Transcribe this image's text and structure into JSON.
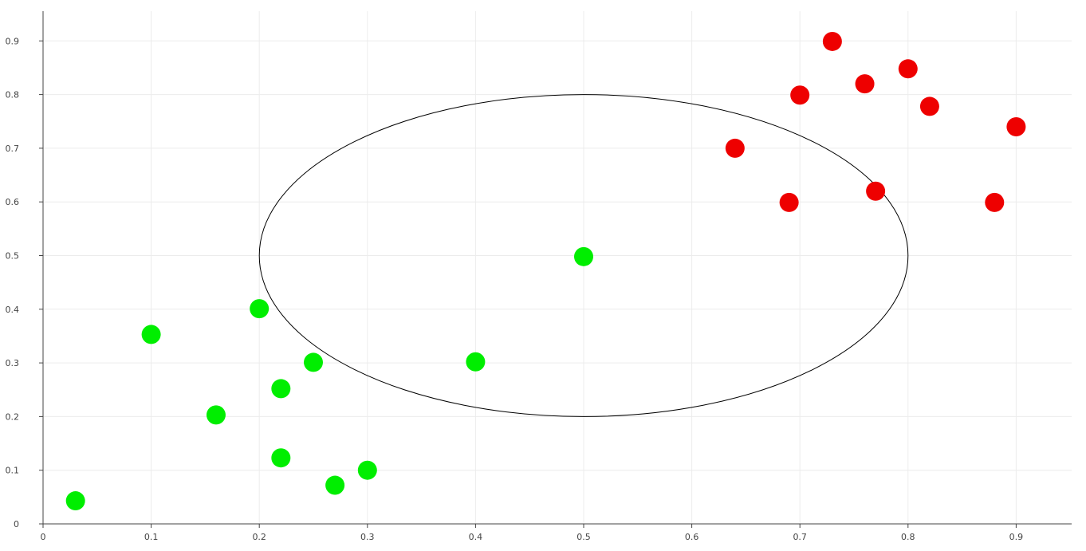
{
  "chart_data": {
    "type": "scatter",
    "title": "",
    "xlabel": "",
    "ylabel": "",
    "xlim": [
      0,
      0.95
    ],
    "ylim": [
      0,
      0.95
    ],
    "grid": true,
    "x_ticks": [
      0,
      0.1,
      0.2,
      0.3,
      0.4,
      0.5,
      0.6,
      0.7,
      0.8,
      0.9
    ],
    "x_tick_labels": [
      "0",
      "0.1",
      "0.2",
      "0.3",
      "0.4",
      "0.5",
      "0.6",
      "0.7",
      "0.8",
      "0.9"
    ],
    "y_ticks": [
      0,
      0.1,
      0.2,
      0.3,
      0.4,
      0.5,
      0.6,
      0.7,
      0.8,
      0.9
    ],
    "y_tick_labels": [
      "0",
      "0.1",
      "0.2",
      "0.3",
      "0.4",
      "0.5",
      "0.6",
      "0.7",
      "0.8",
      "0.9"
    ],
    "series": [
      {
        "color": "#00ee00",
        "points": [
          {
            "x": 0.03,
            "y": 0.043
          },
          {
            "x": 0.1,
            "y": 0.353
          },
          {
            "x": 0.16,
            "y": 0.203
          },
          {
            "x": 0.2,
            "y": 0.401
          },
          {
            "x": 0.22,
            "y": 0.252
          },
          {
            "x": 0.22,
            "y": 0.123
          },
          {
            "x": 0.25,
            "y": 0.301
          },
          {
            "x": 0.27,
            "y": 0.072
          },
          {
            "x": 0.3,
            "y": 0.1
          },
          {
            "x": 0.4,
            "y": 0.302
          },
          {
            "x": 0.5,
            "y": 0.498
          }
        ]
      },
      {
        "color": "#ee0000",
        "points": [
          {
            "x": 0.64,
            "y": 0.7
          },
          {
            "x": 0.69,
            "y": 0.599
          },
          {
            "x": 0.7,
            "y": 0.799
          },
          {
            "x": 0.73,
            "y": 0.899
          },
          {
            "x": 0.76,
            "y": 0.82
          },
          {
            "x": 0.77,
            "y": 0.62
          },
          {
            "x": 0.8,
            "y": 0.848
          },
          {
            "x": 0.82,
            "y": 0.778
          },
          {
            "x": 0.88,
            "y": 0.599
          },
          {
            "x": 0.9,
            "y": 0.74
          }
        ]
      }
    ],
    "annotations": [
      {
        "type": "circle",
        "cx": 0.5,
        "cy": 0.5,
        "r": 0.3,
        "color": "#000000",
        "fill": "none"
      }
    ]
  }
}
